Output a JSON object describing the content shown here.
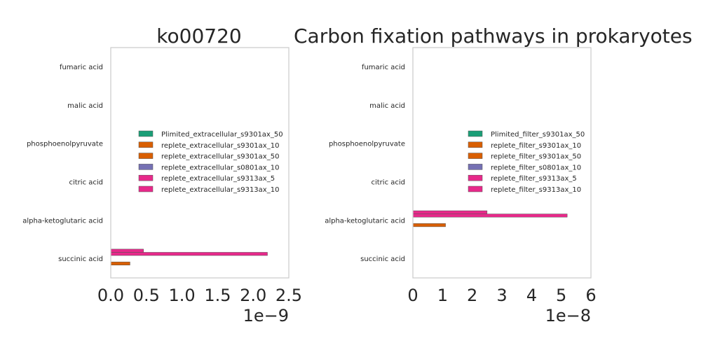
{
  "titles": {
    "left": "ko00720",
    "right": "Carbon fixation pathways in prokaryotes"
  },
  "chart_data": [
    {
      "type": "bar",
      "orientation": "horizontal",
      "categories": [
        "succinic acid",
        "alpha-ketoglutaric acid",
        "citric acid",
        "phosphoenolpyruvate",
        "malic acid",
        "fumaric acid"
      ],
      "xlim": [
        0,
        2.5e-09
      ],
      "xticks": [
        "0.0",
        "0.5",
        "1.0",
        "1.5",
        "2.0",
        "2.5"
      ],
      "xtick_values": [
        0,
        5e-10,
        1e-09,
        1.5e-09,
        2e-09,
        2.5e-09
      ],
      "offset_label": "1e−9",
      "legend_position": "center-right",
      "series": [
        {
          "name": "Plimited_extracellular_s9301ax_50",
          "color": "#1b9e77",
          "values": [
            0,
            0,
            0,
            0,
            0,
            0
          ]
        },
        {
          "name": "replete_extracellular_s9301ax_10",
          "color": "#d95f02",
          "values": [
            2.7e-10,
            0,
            0,
            0,
            0,
            0
          ]
        },
        {
          "name": "replete_extracellular_s9301ax_50",
          "color": "#d95f02",
          "values": [
            0,
            0,
            0,
            0,
            0,
            0
          ]
        },
        {
          "name": "replete_extracellular_s0801ax_10",
          "color": "#7570b3",
          "values": [
            0,
            0,
            0,
            0,
            0,
            0
          ]
        },
        {
          "name": "replete_extracellular_s9313ax_5",
          "color": "#e7298a",
          "values": [
            2.2e-09,
            0,
            0,
            0,
            0,
            0
          ]
        },
        {
          "name": "replete_extracellular_s9313ax_10",
          "color": "#e7298a",
          "values": [
            4.6e-10,
            0,
            0,
            0,
            0,
            0
          ]
        }
      ]
    },
    {
      "type": "bar",
      "orientation": "horizontal",
      "categories": [
        "succinic acid",
        "alpha-ketoglutaric acid",
        "citric acid",
        "phosphoenolpyruvate",
        "malic acid",
        "fumaric acid"
      ],
      "xlim": [
        0,
        6e-08
      ],
      "xticks": [
        "0",
        "1",
        "2",
        "3",
        "4",
        "5",
        "6"
      ],
      "xtick_values": [
        0,
        1e-08,
        2e-08,
        3e-08,
        4e-08,
        5e-08,
        6e-08
      ],
      "offset_label": "1e−8",
      "legend_position": "center-right",
      "series": [
        {
          "name": "Plimited_filter_s9301ax_50",
          "color": "#1b9e77",
          "values": [
            0,
            0,
            0,
            0,
            0,
            0
          ]
        },
        {
          "name": "replete_filter_s9301ax_10",
          "color": "#d95f02",
          "values": [
            0,
            1.1e-08,
            0,
            0,
            0,
            0
          ]
        },
        {
          "name": "replete_filter_s9301ax_50",
          "color": "#d95f02",
          "values": [
            0,
            0,
            0,
            0,
            0,
            0
          ]
        },
        {
          "name": "replete_filter_s0801ax_10",
          "color": "#7570b3",
          "values": [
            0,
            0,
            0,
            0,
            0,
            0
          ]
        },
        {
          "name": "replete_filter_s9313ax_5",
          "color": "#e7298a",
          "values": [
            0,
            5.2e-08,
            0,
            0,
            0,
            0
          ]
        },
        {
          "name": "replete_filter_s9313ax_10",
          "color": "#e7298a",
          "values": [
            0,
            2.5e-08,
            0,
            0,
            0,
            0
          ]
        }
      ]
    }
  ]
}
